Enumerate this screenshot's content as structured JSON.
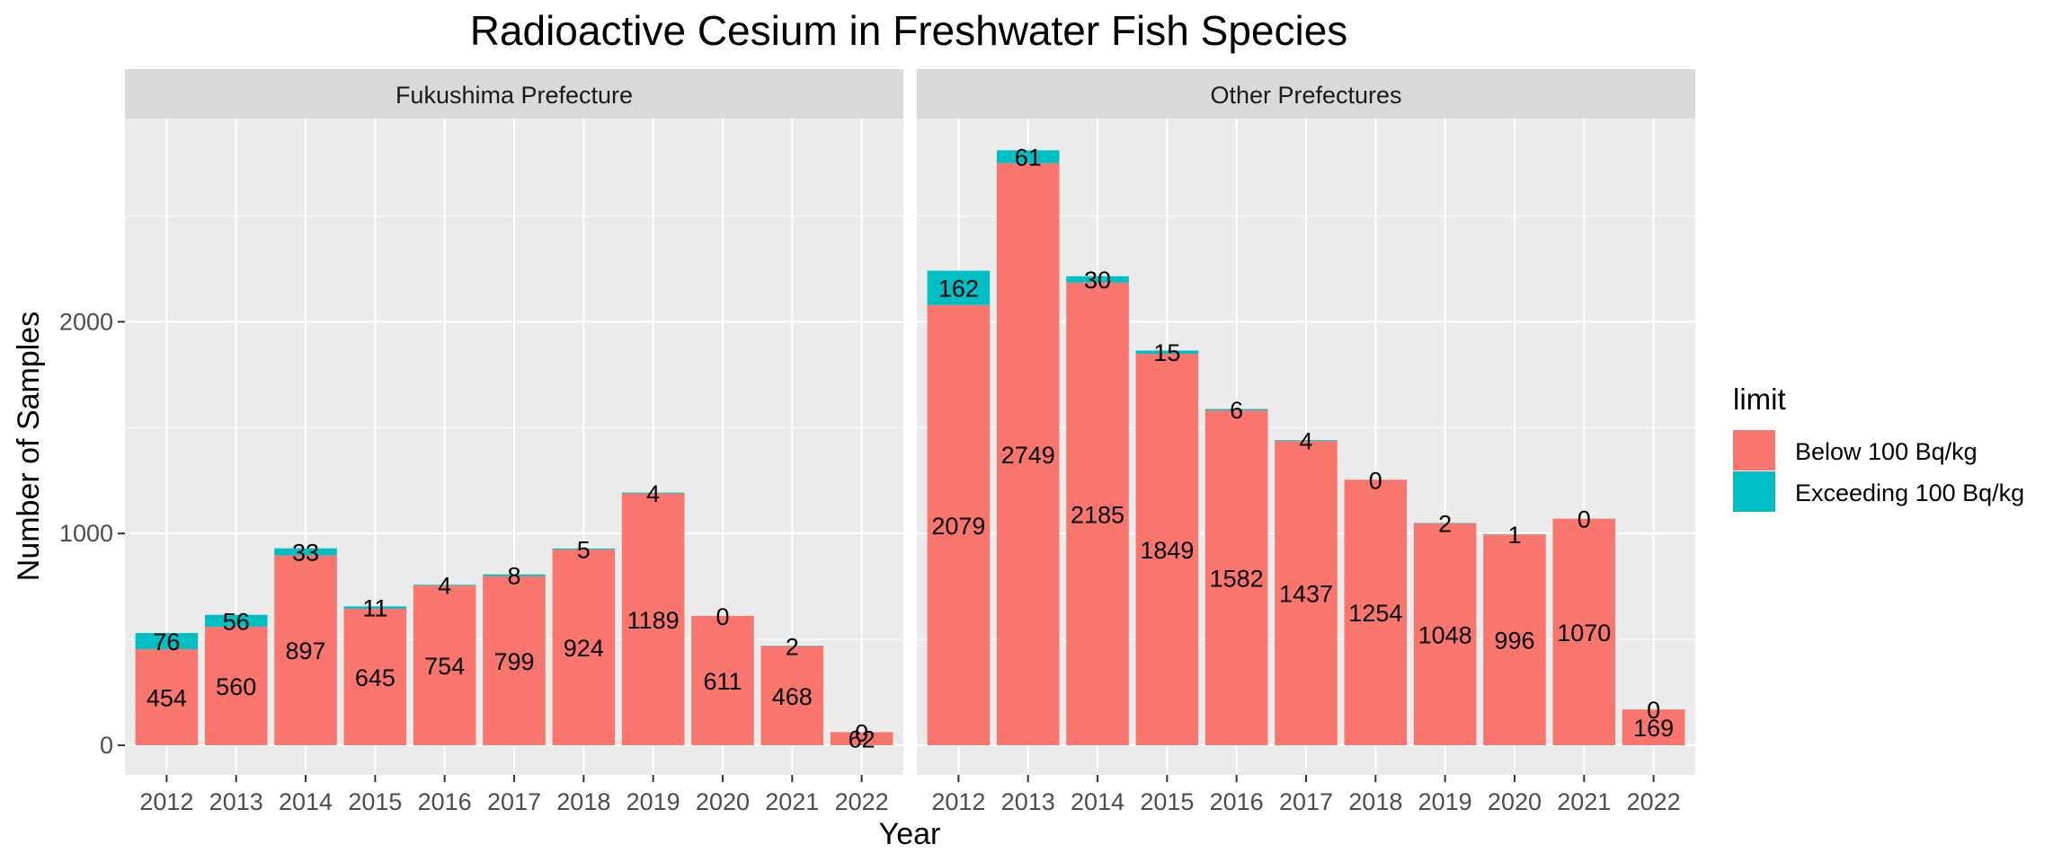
{
  "chart_data": {
    "type": "bar",
    "stacked": true,
    "title": "Radioactive Cesium in Freshwater Fish Species",
    "xlabel": "Year",
    "ylabel": "Number of Samples",
    "ylim": [
      -140,
      2960
    ],
    "yticks": [
      0,
      1000,
      2000
    ],
    "grid": true,
    "legend": {
      "title": "limit",
      "position": "right",
      "entries": [
        {
          "name": "Below 100 Bq/kg",
          "color": "#F8766D"
        },
        {
          "name": "Exceeding 100 Bq/kg",
          "color": "#00BFC4"
        }
      ]
    },
    "categories": [
      "2012",
      "2013",
      "2014",
      "2015",
      "2016",
      "2017",
      "2018",
      "2019",
      "2020",
      "2021",
      "2022"
    ],
    "panels": [
      {
        "label": "Fukushima Prefecture",
        "series": [
          {
            "name": "Below 100 Bq/kg",
            "values": [
              454,
              560,
              897,
              645,
              754,
              799,
              924,
              1189,
              611,
              468,
              62
            ]
          },
          {
            "name": "Exceeding 100 Bq/kg",
            "values": [
              76,
              56,
              33,
              11,
              4,
              8,
              5,
              4,
              0,
              2,
              0
            ]
          }
        ]
      },
      {
        "label": "Other Prefectures",
        "series": [
          {
            "name": "Below 100 Bq/kg",
            "values": [
              2079,
              2749,
              2185,
              1849,
              1582,
              1437,
              1254,
              1048,
              996,
              1070,
              169
            ]
          },
          {
            "name": "Exceeding 100 Bq/kg",
            "values": [
              162,
              61,
              30,
              15,
              6,
              4,
              0,
              2,
              1,
              0,
              0
            ]
          }
        ]
      }
    ]
  }
}
